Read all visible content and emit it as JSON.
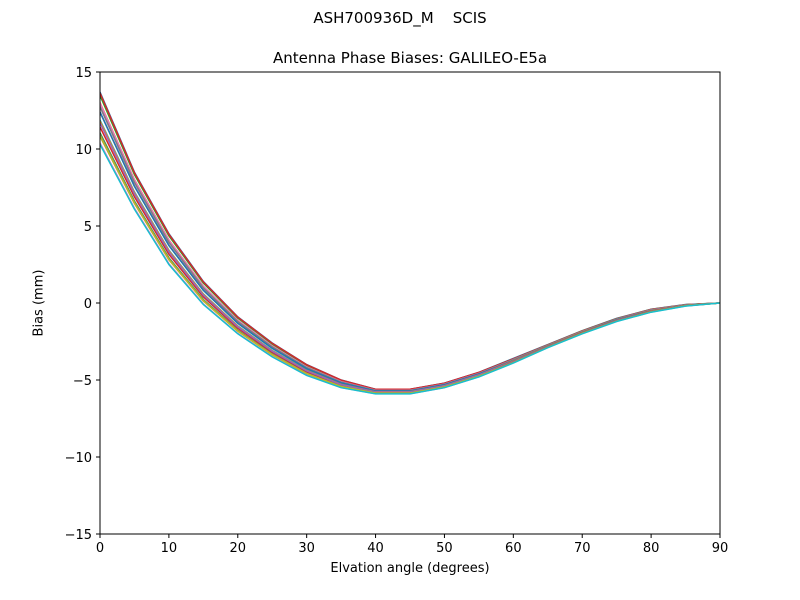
{
  "figure": {
    "suptitle": "ASH700936D_M    SCIS",
    "title": "Antenna Phase Biases: GALILEO-E5a",
    "xlabel": "Elvation angle (degrees)",
    "ylabel": "Bias (mm)"
  },
  "chart_data": {
    "type": "line",
    "title": "Antenna Phase Biases: GALILEO-E5a",
    "suptitle": "ASH700936D_M    SCIS",
    "xlabel": "Elvation angle (degrees)",
    "ylabel": "Bias (mm)",
    "xlim": [
      0,
      90
    ],
    "ylim": [
      -15,
      15
    ],
    "xticks": [
      0,
      10,
      20,
      30,
      40,
      50,
      60,
      70,
      80,
      90
    ],
    "yticks": [
      -15,
      -10,
      -5,
      0,
      5,
      10,
      15
    ],
    "grid": false,
    "legend": null,
    "x": [
      0,
      5,
      10,
      15,
      20,
      25,
      30,
      35,
      40,
      45,
      50,
      55,
      60,
      65,
      70,
      75,
      80,
      85,
      90
    ],
    "series_count": 20,
    "envelope_upper": [
      13.7,
      8.5,
      4.5,
      1.4,
      -0.9,
      -2.6,
      -4.0,
      -5.0,
      -5.6,
      -5.6,
      -5.2,
      -4.5,
      -3.6,
      -2.7,
      -1.8,
      -1.0,
      -0.4,
      -0.1,
      0.0
    ],
    "envelope_lower": [
      10.3,
      6.1,
      2.5,
      -0.1,
      -2.0,
      -3.5,
      -4.7,
      -5.5,
      -5.9,
      -5.9,
      -5.5,
      -4.8,
      -3.9,
      -2.9,
      -2.0,
      -1.2,
      -0.6,
      -0.2,
      0.0
    ],
    "colors": [
      "#1f77b4",
      "#ff7f0e",
      "#2ca02c",
      "#d62728",
      "#9467bd",
      "#8c564b",
      "#e377c2",
      "#7f7f7f",
      "#bcbd22",
      "#17becf"
    ]
  }
}
